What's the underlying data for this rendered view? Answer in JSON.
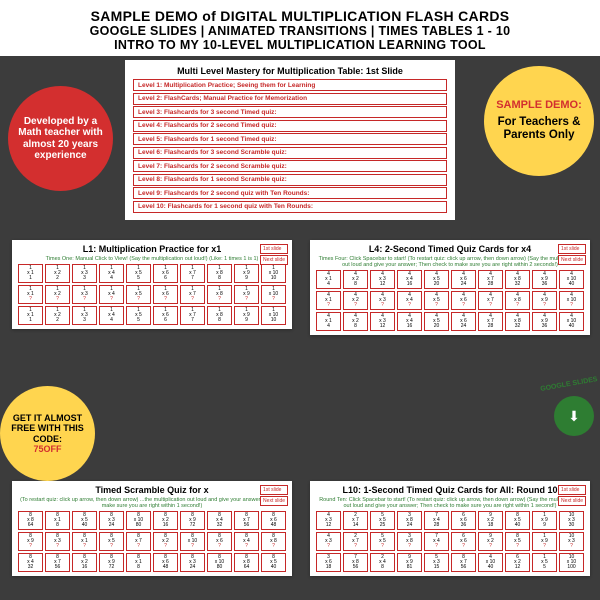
{
  "header": {
    "line1": "SAMPLE DEMO of DIGITAL MULTIPLICATION FLASH CARDS",
    "line2": "GOOGLE SLIDES | ANIMATED TRANSITIONS | TIMES TABLES 1 - 10",
    "line3": "INTRO TO MY 10-LEVEL MULTIPLICATION LEARNING TOOL"
  },
  "badges": {
    "dev": "Developed by a Math teacher with almost 20 years experience",
    "sample_l1": "SAMPLE DEMO:",
    "sample_l2": "For Teachers & Parents Only",
    "free_l1": "GET IT ALMOST FREE WITH THIS CODE:",
    "free_code": "75OFF",
    "gslides": "GOOGLE SLIDES"
  },
  "mastery": {
    "title": "Multi Level Mastery for Multiplication Table: 1st Slide",
    "levels": [
      "Level 1: Multiplication Practice; Seeing them for Learning",
      "Level 2: FlashCards; Manual Practice for Memorization",
      "Level 3: Flashcards for 3 second Timed quiz:",
      "Level 4: Flashcards for 2 second Timed quiz:",
      "Level 5: Flashcards for 1 second Timed quiz:",
      "Level 6: Flashcards for 3 second Scramble quiz:",
      "Level 7: Flashcards for 2 second Scramble quiz:",
      "Level 8: Flashcards for 1 second Scramble quiz:",
      "Level 9: Flashcards for 2 second quiz with Ten Rounds:",
      "Level 10: Flashcards for 1 second quiz with Ten Rounds:"
    ]
  },
  "nav": {
    "first": "1st slide",
    "next": "Next slide"
  },
  "panels": {
    "l1": {
      "title": "L1: Multiplication Practice for x1",
      "sub": "Times One: Manual Click to View! (Say the multiplication out loud!) (Like: 1 times 1 is 1)",
      "rows": [
        [
          [
            "1",
            "x 1",
            "1"
          ],
          [
            "1",
            "x 2",
            "2"
          ],
          [
            "1",
            "x 3",
            "3"
          ],
          [
            "1",
            "x 4",
            "4"
          ],
          [
            "1",
            "x 5",
            "5"
          ],
          [
            "1",
            "x 6",
            "6"
          ],
          [
            "1",
            "x 7",
            "7"
          ],
          [
            "1",
            "x 8",
            "8"
          ],
          [
            "1",
            "x 9",
            "9"
          ],
          [
            "1",
            "x 10",
            "10"
          ]
        ],
        [
          [
            "1",
            "x 1",
            "?"
          ],
          [
            "1",
            "x 2",
            "?"
          ],
          [
            "1",
            "x 3",
            "?"
          ],
          [
            "1",
            "x 4",
            "?"
          ],
          [
            "1",
            "x 5",
            "?"
          ],
          [
            "1",
            "x 6",
            "?"
          ],
          [
            "1",
            "x 7",
            "?"
          ],
          [
            "1",
            "x 8",
            "?"
          ],
          [
            "1",
            "x 9",
            "?"
          ],
          [
            "1",
            "x 10",
            "?"
          ]
        ],
        [
          [
            "1",
            "x 1",
            "1"
          ],
          [
            "1",
            "x 2",
            "2"
          ],
          [
            "1",
            "x 3",
            "3"
          ],
          [
            "1",
            "x 4",
            "4"
          ],
          [
            "1",
            "x 5",
            "5"
          ],
          [
            "1",
            "x 6",
            "6"
          ],
          [
            "1",
            "x 7",
            "7"
          ],
          [
            "1",
            "x 8",
            "8"
          ],
          [
            "1",
            "x 9",
            "9"
          ],
          [
            "1",
            "x 10",
            "10"
          ]
        ]
      ]
    },
    "l4": {
      "title": "L4: 2-Second Timed Quiz Cards for x4",
      "sub": "Times Four: Click Spacebar to start! (To restart quiz: click up arrow, then down arrow) (Say the multiplication out loud and give your answer; Then check to make sure you are right within 2 seconds!)",
      "rows": [
        [
          [
            "4",
            "x 1",
            "4"
          ],
          [
            "4",
            "x 2",
            "8"
          ],
          [
            "4",
            "x 3",
            "12"
          ],
          [
            "4",
            "x 4",
            "16"
          ],
          [
            "4",
            "x 5",
            "20"
          ],
          [
            "4",
            "x 6",
            "24"
          ],
          [
            "4",
            "x 7",
            "28"
          ],
          [
            "4",
            "x 8",
            "32"
          ],
          [
            "4",
            "x 9",
            "36"
          ],
          [
            "4",
            "x 10",
            "40"
          ]
        ],
        [
          [
            "4",
            "x 1",
            "?"
          ],
          [
            "4",
            "x 2",
            "?"
          ],
          [
            "4",
            "x 3",
            "?"
          ],
          [
            "4",
            "x 4",
            "?"
          ],
          [
            "4",
            "x 5",
            "?"
          ],
          [
            "4",
            "x 6",
            "?"
          ],
          [
            "4",
            "x 7",
            "?"
          ],
          [
            "4",
            "x 8",
            "?"
          ],
          [
            "4",
            "x 9",
            "?"
          ],
          [
            "4",
            "x 10",
            "?"
          ]
        ],
        [
          [
            "4",
            "x 1",
            "4"
          ],
          [
            "4",
            "x 2",
            "8"
          ],
          [
            "4",
            "x 3",
            "12"
          ],
          [
            "4",
            "x 4",
            "16"
          ],
          [
            "4",
            "x 5",
            "20"
          ],
          [
            "4",
            "x 6",
            "24"
          ],
          [
            "4",
            "x 7",
            "28"
          ],
          [
            "4",
            "x 8",
            "32"
          ],
          [
            "4",
            "x 9",
            "36"
          ],
          [
            "4",
            "x 10",
            "40"
          ]
        ]
      ]
    },
    "l8": {
      "title": "Timed Scramble Quiz for x",
      "sub": "(To restart quiz: click up arrow, then down arrow) ...the multiplication out loud and give your answer; check to make sure you are right within 1 second!)",
      "rows": [
        [
          [
            "8",
            "x 8",
            "64"
          ],
          [
            "8",
            "x 1",
            "8"
          ],
          [
            "8",
            "x 5",
            "40"
          ],
          [
            "8",
            "x 3",
            "24"
          ],
          [
            "8",
            "x 10",
            "80"
          ],
          [
            "8",
            "x 2",
            "16"
          ],
          [
            "8",
            "x 9",
            "72"
          ],
          [
            "8",
            "x 4",
            "32"
          ],
          [
            "8",
            "x 7",
            "56"
          ],
          [
            "8",
            "x 6",
            "48"
          ]
        ],
        [
          [
            "8",
            "x 9",
            "?"
          ],
          [
            "8",
            "x 3",
            "?"
          ],
          [
            "8",
            "x 1",
            "?"
          ],
          [
            "8",
            "x 5",
            "?"
          ],
          [
            "8",
            "x 7",
            "?"
          ],
          [
            "8",
            "x 2",
            "?"
          ],
          [
            "8",
            "x 10",
            "?"
          ],
          [
            "8",
            "x 6",
            "?"
          ],
          [
            "8",
            "x 4",
            "?"
          ],
          [
            "8",
            "x 8",
            "?"
          ]
        ],
        [
          [
            "8",
            "x 4",
            "32"
          ],
          [
            "8",
            "x 7",
            "56"
          ],
          [
            "8",
            "x 2",
            "16"
          ],
          [
            "8",
            "x 9",
            "72"
          ],
          [
            "8",
            "x 1",
            "8"
          ],
          [
            "8",
            "x 6",
            "48"
          ],
          [
            "8",
            "x 3",
            "24"
          ],
          [
            "8",
            "x 10",
            "80"
          ],
          [
            "8",
            "x 8",
            "64"
          ],
          [
            "8",
            "x 5",
            "40"
          ]
        ]
      ]
    },
    "l10": {
      "title": "L10: 1-Second Timed Quiz Cards for All: Round 10",
      "sub": "Round Ten: Click Spacebar to start! (To restart quiz: click up arrow, then down arrow) (Say the multiplication out loud and give your answer; Then check to make sure you are right within 1 second!)",
      "rows": [
        [
          [
            "4",
            "x 3",
            "12"
          ],
          [
            "2",
            "x 7",
            "14"
          ],
          [
            "5",
            "x 5",
            "25"
          ],
          [
            "3",
            "x 8",
            "24"
          ],
          [
            "7",
            "x 4",
            "28"
          ],
          [
            "6",
            "x 6",
            "36"
          ],
          [
            "9",
            "x 2",
            "18"
          ],
          [
            "8",
            "x 5",
            "40"
          ],
          [
            "1",
            "x 9",
            "9"
          ],
          [
            "10",
            "x 3",
            "30"
          ]
        ],
        [
          [
            "4",
            "x 3",
            "?"
          ],
          [
            "2",
            "x 7",
            "?"
          ],
          [
            "5",
            "x 5",
            "?"
          ],
          [
            "3",
            "x 8",
            "?"
          ],
          [
            "7",
            "x 4",
            "?"
          ],
          [
            "6",
            "x 6",
            "?"
          ],
          [
            "9",
            "x 2",
            "?"
          ],
          [
            "8",
            "x 5",
            "?"
          ],
          [
            "1",
            "x 9",
            "?"
          ],
          [
            "10",
            "x 3",
            "?"
          ]
        ],
        [
          [
            "3",
            "x 6",
            "18"
          ],
          [
            "7",
            "x 8",
            "56"
          ],
          [
            "2",
            "x 4",
            "8"
          ],
          [
            "9",
            "x 9",
            "81"
          ],
          [
            "5",
            "x 3",
            "15"
          ],
          [
            "8",
            "x 7",
            "56"
          ],
          [
            "4",
            "x 10",
            "40"
          ],
          [
            "6",
            "x 2",
            "12"
          ],
          [
            "1",
            "x 5",
            "5"
          ],
          [
            "10",
            "x 10",
            "100"
          ]
        ]
      ]
    }
  },
  "colors": {
    "red": "#d32f2f",
    "yellow": "#ffd54f",
    "green": "#2e7d32",
    "cardRed": "#c62828",
    "bg": "#424242"
  }
}
